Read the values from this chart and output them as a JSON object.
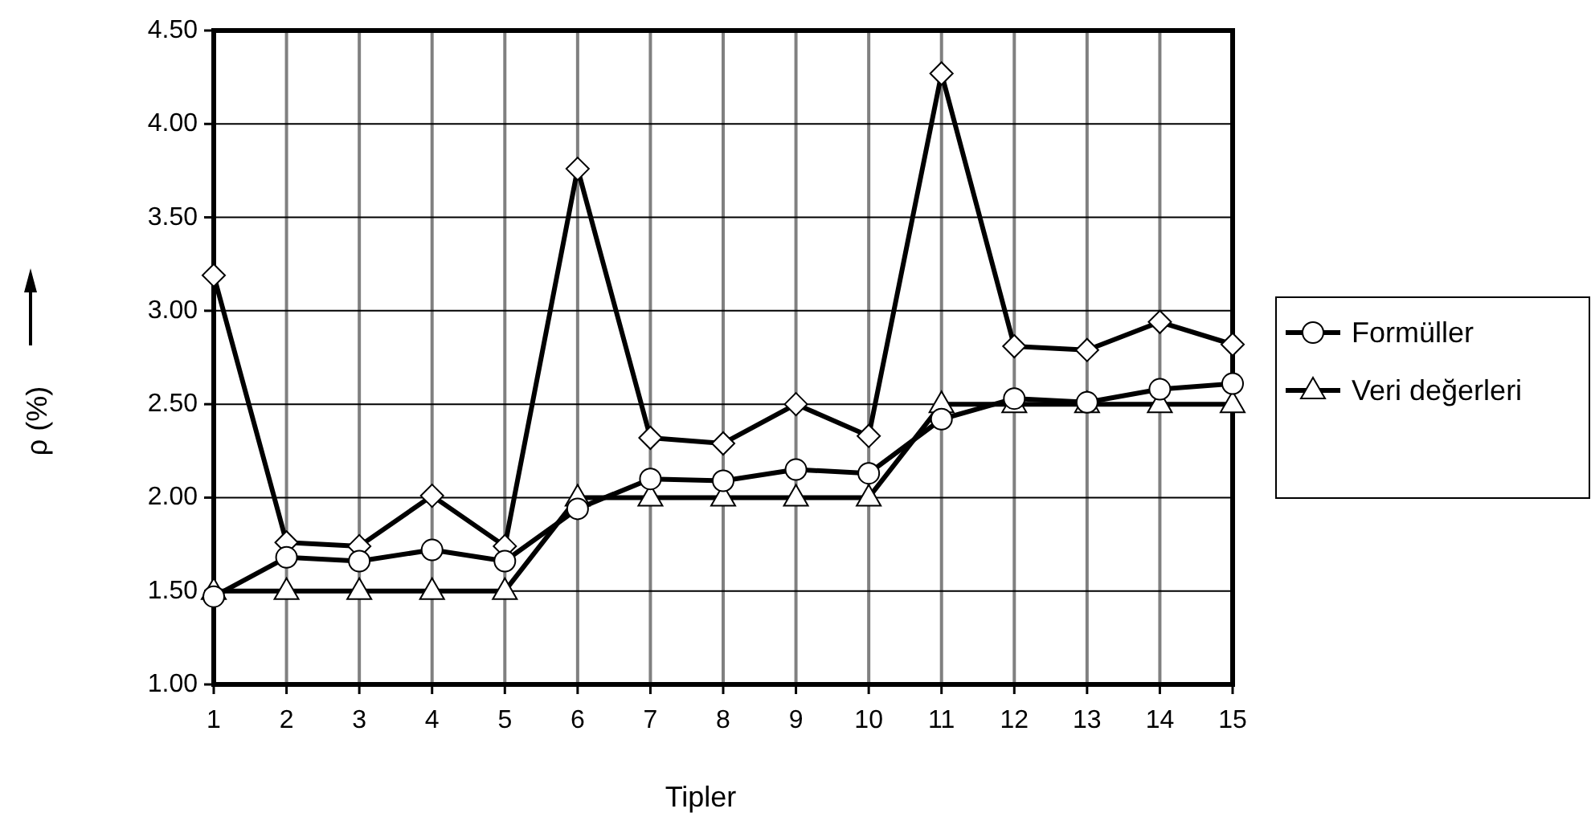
{
  "chart_data": {
    "type": "line",
    "xlabel": "Tipler",
    "ylabel": "ρ (%)",
    "x": [
      1,
      2,
      3,
      4,
      5,
      6,
      7,
      8,
      9,
      10,
      11,
      12,
      13,
      14,
      15
    ],
    "xlim": [
      1,
      15
    ],
    "xticks": [
      1,
      2,
      3,
      4,
      5,
      6,
      7,
      8,
      9,
      10,
      11,
      12,
      13,
      14,
      15
    ],
    "ylim": [
      1,
      4.5
    ],
    "yticks": [
      {
        "value": 1,
        "label": "1.00"
      },
      {
        "value": 1.5,
        "label": "1.50"
      },
      {
        "value": 2,
        "label": "2.00"
      },
      {
        "value": 2.5,
        "label": "2.50"
      },
      {
        "value": 3,
        "label": "3.00"
      },
      {
        "value": 3.5,
        "label": "3.50"
      },
      {
        "value": 4,
        "label": "4.00"
      },
      {
        "value": 4.5,
        "label": "4.50"
      }
    ],
    "grid": true,
    "legend": "right",
    "line_style": "solid",
    "series": [
      {
        "name": "Formüller",
        "color": "#000000",
        "marker": "circle",
        "values": [
          1.47,
          1.68,
          1.66,
          1.72,
          1.66,
          1.94,
          2.1,
          2.09,
          2.15,
          2.13,
          2.42,
          2.53,
          2.51,
          2.58,
          2.61
        ]
      },
      {
        "name": "Veri değerleri",
        "color": "#000000",
        "marker": "triangle",
        "values": [
          1.5,
          1.5,
          1.5,
          1.5,
          1.5,
          2,
          2,
          2,
          2,
          2,
          2.5,
          2.5,
          2.5,
          2.5,
          2.5
        ]
      },
      {
        "color": "#000000",
        "marker": "diamond",
        "values": [
          3.19,
          1.76,
          1.74,
          2.01,
          1.74,
          3.76,
          2.32,
          2.29,
          2.5,
          2.33,
          4.27,
          2.81,
          2.79,
          2.94,
          2.82
        ]
      }
    ]
  }
}
